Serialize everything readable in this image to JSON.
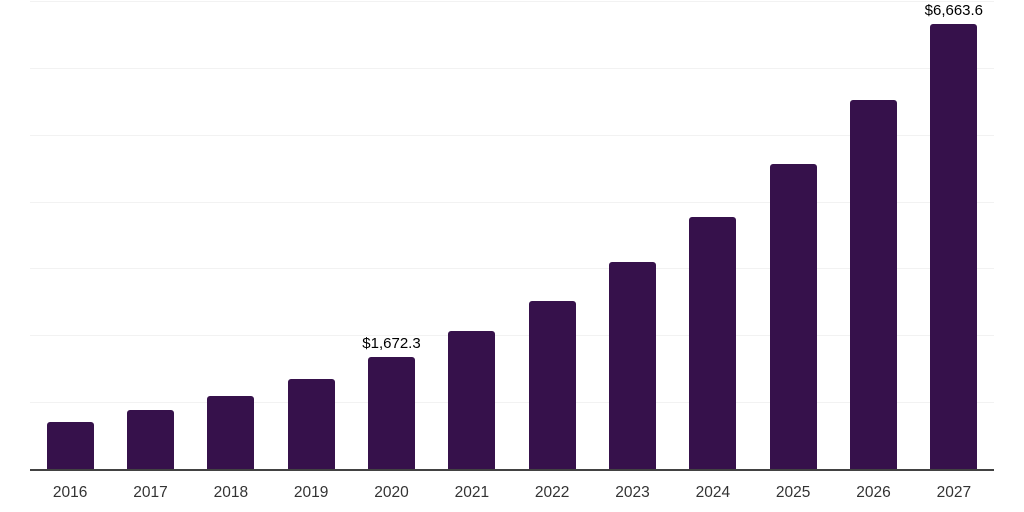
{
  "chart_data": {
    "type": "bar",
    "title": "",
    "xlabel": "",
    "ylabel": "",
    "categories": [
      "2016",
      "2017",
      "2018",
      "2019",
      "2020",
      "2021",
      "2022",
      "2023",
      "2024",
      "2025",
      "2026",
      "2027"
    ],
    "values": [
      705,
      880,
      1090,
      1340,
      1672.3,
      2060,
      2520,
      3090,
      3770,
      4565,
      5525,
      6663.6
    ],
    "data_labels": [
      {
        "category": "2020",
        "index": 4,
        "text": "$1,672.3"
      },
      {
        "category": "2027",
        "index": 11,
        "text": "$6,663.6"
      }
    ],
    "ylim": [
      0,
      7000
    ],
    "y_gridline_step": 1000,
    "grid": "horizontal",
    "legend": "none",
    "colors": {
      "bar": "#36114B",
      "gridline": "#f2f2f2",
      "axis_line": "#424242",
      "data_label": "#000000",
      "tick_label": "#333333",
      "background": "#ffffff"
    }
  }
}
